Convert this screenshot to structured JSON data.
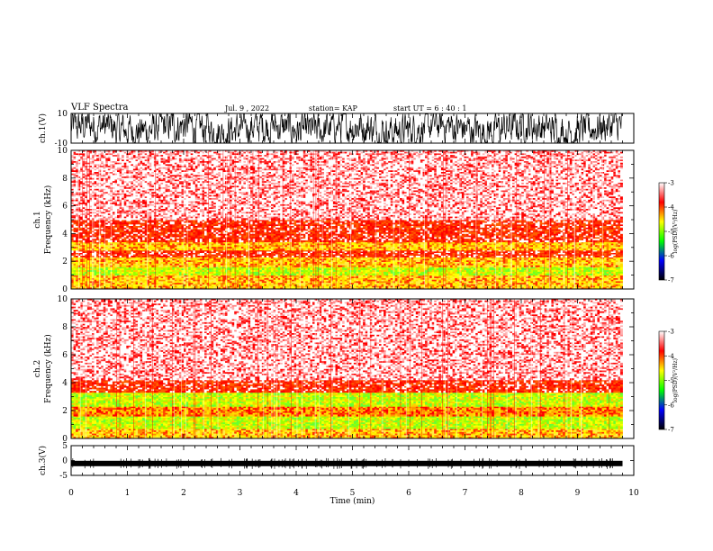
{
  "header": {
    "title": "VLF Spectra",
    "date": "Jul. 9 , 2022",
    "station": "station= KAP",
    "start": "start UT = 6 : 40 : 1"
  },
  "chart_data": [
    {
      "type": "line",
      "panel": "ch1-waveform",
      "ylabel": "ch.1(V)",
      "ylim": [
        -10,
        10
      ],
      "yticks": [
        "10",
        "-10"
      ],
      "xlim": [
        0,
        10
      ],
      "style": "dense noisy black waveform filling most of the range"
    },
    {
      "type": "heatmap",
      "panel": "ch1-spectrogram",
      "ylabel": "ch.1 Frequency (kHz)",
      "ylim": [
        0,
        10
      ],
      "yticks": [
        "0",
        "2",
        "4",
        "6",
        "8",
        "10"
      ],
      "xlim": [
        0,
        10
      ],
      "data_extent_x": [
        0,
        9.8
      ],
      "bands": [
        {
          "from": 0.0,
          "to": 1.0,
          "level": 3
        },
        {
          "from": 1.0,
          "to": 1.6,
          "level": 4
        },
        {
          "from": 1.6,
          "to": 2.3,
          "level": 3
        },
        {
          "from": 2.3,
          "to": 2.8,
          "level": 1
        },
        {
          "from": 2.8,
          "to": 3.4,
          "level": 3
        },
        {
          "from": 3.4,
          "to": 5.0,
          "level": 1
        },
        {
          "from": 5.0,
          "to": 10.0,
          "level": 0
        }
      ],
      "colorbar": {
        "label": "log(PSD)(V²/Hz)",
        "range": [
          -7,
          -3
        ],
        "ticks": [
          "-3",
          "-4",
          "-5",
          "-6",
          "-7"
        ],
        "colors": [
          "#ffffff",
          "#ff0000",
          "#ffff00",
          "#00ff00",
          "#0000ff",
          "#000000"
        ]
      }
    },
    {
      "type": "heatmap",
      "panel": "ch2-spectrogram",
      "ylabel": "ch.2 Frequency (kHz)",
      "ylim": [
        0,
        10
      ],
      "yticks": [
        "0",
        "2",
        "4",
        "6",
        "8",
        "10"
      ],
      "xlim": [
        0,
        10
      ],
      "data_extent_x": [
        0,
        9.8
      ],
      "bands": [
        {
          "from": 0.0,
          "to": 0.7,
          "level": 3
        },
        {
          "from": 0.7,
          "to": 1.6,
          "level": 4
        },
        {
          "from": 1.6,
          "to": 2.3,
          "level": 2
        },
        {
          "from": 2.3,
          "to": 3.3,
          "level": 4
        },
        {
          "from": 3.3,
          "to": 4.2,
          "level": 1
        },
        {
          "from": 4.2,
          "to": 10.0,
          "level": 0
        }
      ],
      "colorbar": {
        "label": "log(PSD)(V²/Hz)",
        "range": [
          -7,
          -3
        ],
        "ticks": [
          "-3",
          "-4",
          "-5",
          "-6",
          "-7"
        ],
        "colors": [
          "#ffffff",
          "#ff0000",
          "#ffff00",
          "#00ff00",
          "#0000ff",
          "#000000"
        ]
      }
    },
    {
      "type": "line",
      "panel": "ch3-waveform",
      "ylabel": "ch.3(V)",
      "ylim": [
        -5,
        5
      ],
      "yticks": [
        "5",
        "0",
        "-5"
      ],
      "xlim": [
        0,
        10
      ],
      "style": "thin flat black band near -1 V"
    }
  ],
  "xaxis": {
    "label": "Time (min)",
    "ticks": [
      "0",
      "1",
      "2",
      "3",
      "4",
      "5",
      "6",
      "7",
      "8",
      "9",
      "10"
    ]
  }
}
